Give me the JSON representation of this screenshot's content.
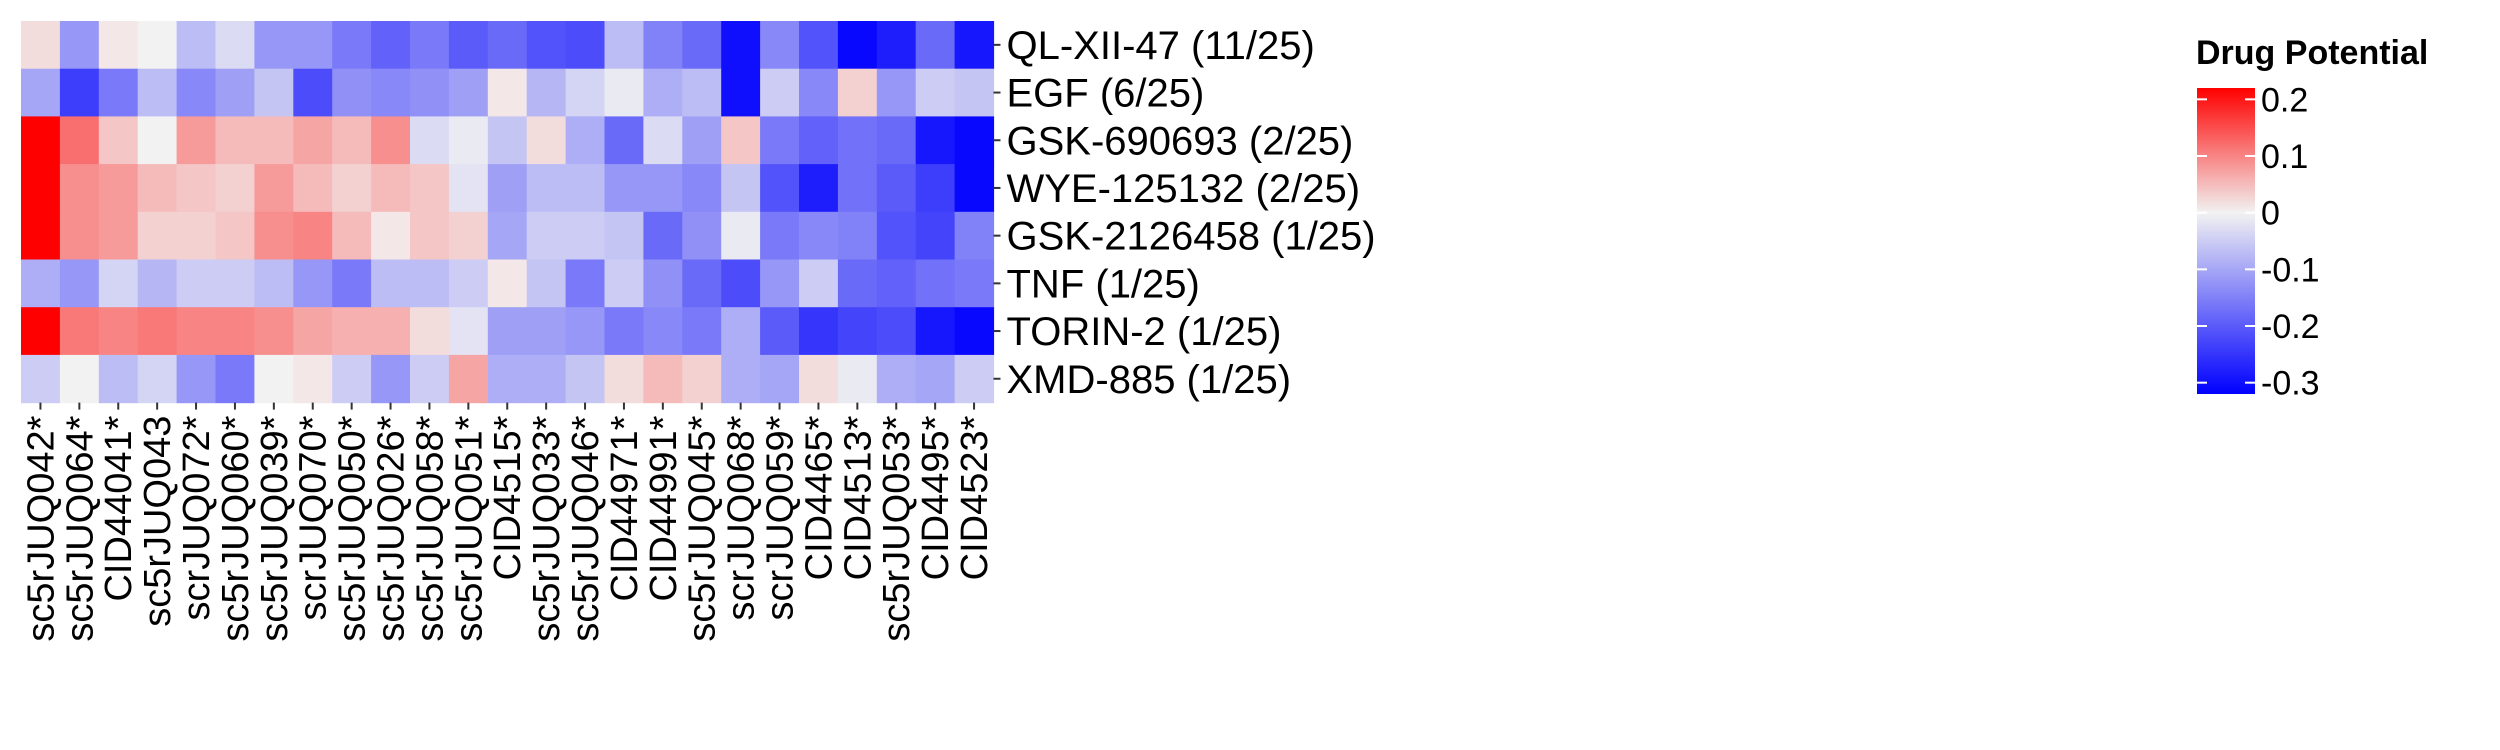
{
  "chart_data": {
    "type": "heatmap",
    "legend": {
      "title": "Drug Potential",
      "ticks": [
        0.2,
        0.1,
        0,
        -0.1,
        -0.2,
        -0.3
      ],
      "tick_labels": [
        "0.2",
        "0.1",
        "0",
        "-0.1",
        "-0.2",
        "-0.3"
      ],
      "range": [
        -0.32,
        0.22
      ],
      "placement": "right",
      "colors": {
        "low": "#0000ff",
        "mid": "#f2f2f2",
        "high": "#ff0000"
      }
    },
    "rows": [
      "QL-XII-47 (11/25)",
      "EGF (6/25)",
      "GSK-690693 (2/25)",
      "WYE-125132 (2/25)",
      "GSK-2126458 (1/25)",
      "TNF (1/25)",
      "TORIN-2 (1/25)",
      "XMD-885 (1/25)"
    ],
    "columns": [
      "sc5rJUQ042*",
      "sc5rJUQ064*",
      "CID44041*",
      "sc5rJUQ043",
      "scrJUQ072*",
      "sc5rJUQ060*",
      "sc5rJUQ039*",
      "scrJUQ070*",
      "sc5rJUQ050*",
      "sc5rJUQ026*",
      "sc5rJUQ058*",
      "sc5rJUQ051*",
      "CID4515*",
      "sc5rJUQ033*",
      "sc5rJUQ046*",
      "CID44971*",
      "CID44991*",
      "sc5rJUQ045*",
      "scrJUQ068*",
      "scrJUQ059*",
      "CID4465*",
      "CID4513*",
      "sc5rJUQ053*",
      "CID4495*",
      "CID4523*"
    ],
    "values": [
      [
        0.02,
        -0.12,
        0.01,
        0.0,
        -0.07,
        -0.03,
        -0.12,
        -0.12,
        -0.16,
        -0.19,
        -0.16,
        -0.2,
        -0.18,
        -0.21,
        -0.22,
        -0.07,
        -0.15,
        -0.18,
        -0.3,
        -0.14,
        -0.21,
        -0.31,
        -0.28,
        -0.18,
        -0.29
      ],
      [
        -0.1,
        -0.24,
        -0.16,
        -0.07,
        -0.14,
        -0.11,
        -0.06,
        -0.22,
        -0.13,
        -0.14,
        -0.13,
        -0.11,
        0.01,
        -0.08,
        -0.04,
        -0.01,
        -0.09,
        -0.07,
        -0.3,
        -0.05,
        -0.14,
        0.03,
        -0.12,
        -0.05,
        -0.06
      ],
      [
        0.23,
        0.12,
        0.04,
        0.0,
        0.08,
        0.05,
        0.05,
        0.07,
        0.05,
        0.09,
        -0.03,
        -0.01,
        -0.06,
        0.02,
        -0.09,
        -0.18,
        -0.03,
        -0.11,
        0.04,
        -0.16,
        -0.19,
        -0.17,
        -0.18,
        -0.29,
        -0.31
      ],
      [
        0.23,
        0.09,
        0.08,
        0.05,
        0.04,
        0.03,
        0.08,
        0.05,
        0.03,
        0.05,
        0.04,
        -0.02,
        -0.11,
        -0.07,
        -0.07,
        -0.12,
        -0.12,
        -0.14,
        -0.06,
        -0.21,
        -0.28,
        -0.17,
        -0.2,
        -0.24,
        -0.31
      ],
      [
        0.23,
        0.09,
        0.08,
        0.03,
        0.03,
        0.04,
        0.09,
        0.1,
        0.05,
        0.01,
        0.04,
        0.03,
        -0.1,
        -0.05,
        -0.05,
        -0.06,
        -0.18,
        -0.13,
        -0.01,
        -0.16,
        -0.14,
        -0.15,
        -0.21,
        -0.23,
        -0.15
      ],
      [
        -0.09,
        -0.12,
        -0.04,
        -0.08,
        -0.05,
        -0.05,
        -0.07,
        -0.12,
        -0.16,
        -0.07,
        -0.07,
        -0.05,
        0.01,
        -0.06,
        -0.16,
        -0.05,
        -0.13,
        -0.18,
        -0.22,
        -0.12,
        -0.05,
        -0.18,
        -0.19,
        -0.17,
        -0.16
      ],
      [
        0.23,
        0.11,
        0.1,
        0.11,
        0.1,
        0.1,
        0.09,
        0.07,
        0.06,
        0.06,
        0.02,
        -0.02,
        -0.11,
        -0.11,
        -0.12,
        -0.16,
        -0.14,
        -0.16,
        -0.09,
        -0.2,
        -0.25,
        -0.23,
        -0.22,
        -0.29,
        -0.31
      ],
      [
        -0.05,
        0.0,
        -0.07,
        -0.04,
        -0.12,
        -0.16,
        0.0,
        0.01,
        -0.05,
        -0.12,
        -0.05,
        0.07,
        -0.09,
        -0.09,
        -0.06,
        0.02,
        0.05,
        0.03,
        -0.09,
        -0.1,
        0.02,
        -0.01,
        -0.09,
        -0.1,
        -0.05
      ]
    ]
  }
}
